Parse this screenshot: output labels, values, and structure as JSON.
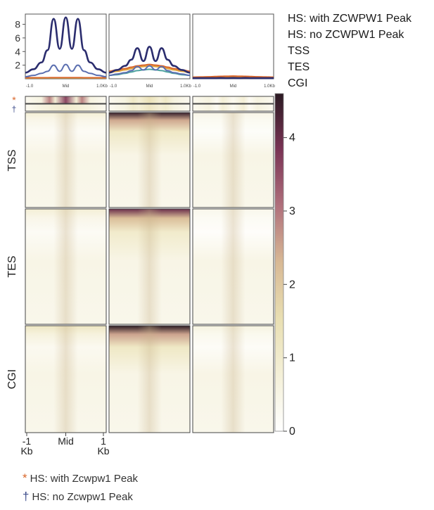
{
  "legend": [
    {
      "label": "HS: with ZCWPW1 Peak",
      "color": "#2b2d6e"
    },
    {
      "label": "HS: no ZCWPW1 Peak",
      "color": "#5b6fb0"
    },
    {
      "label": "TSS",
      "color": "#e0a23a"
    },
    {
      "label": "TES",
      "color": "#4fa3a0"
    },
    {
      "label": "CGI",
      "color": "#d9662a"
    }
  ],
  "footnotes": {
    "star_symbol": "*",
    "star_text": "HS: with Zcwpw1 Peak",
    "star_color": "#d9662a",
    "dagger_symbol": "†",
    "dagger_text": "HS: no Zcwpw1 Peak",
    "dagger_color": "#3a4a8a"
  },
  "row_markers": {
    "star": "*",
    "dagger": "†"
  },
  "row_labels": [
    "TSS",
    "TES",
    "CGI"
  ],
  "bottom_axis": {
    "left": "-1\nKb",
    "mid": "Mid",
    "right": "1\nKb"
  },
  "colorbar": {
    "ticks": [
      0,
      1,
      2,
      3,
      4
    ],
    "min": 0,
    "max": 4.6,
    "stops": [
      "#ffffff",
      "#f4f0d8",
      "#e9dfb2",
      "#d8b995",
      "#b0707c",
      "#7a3355",
      "#2a1a22"
    ]
  },
  "chart_data": {
    "type": "line",
    "profile_xticks": [
      "-1.0",
      "Mid",
      "1.0Kb"
    ],
    "profile_yticks": [
      2,
      4,
      6,
      8
    ],
    "ylim": [
      0,
      9.5
    ],
    "x": [
      -1.0,
      -0.8,
      -0.6,
      -0.45,
      -0.3,
      -0.15,
      0.0,
      0.15,
      0.3,
      0.45,
      0.6,
      0.8,
      1.0
    ],
    "panels": [
      {
        "series": [
          {
            "key": "with_peak",
            "values": [
              0.9,
              1.4,
              2.4,
              4.2,
              8.8,
              4.4,
              9.0,
              4.4,
              8.8,
              4.2,
              2.4,
              1.4,
              0.9
            ]
          },
          {
            "key": "no_peak",
            "values": [
              0.3,
              0.5,
              0.8,
              1.1,
              2.0,
              1.1,
              2.1,
              1.1,
              2.0,
              1.1,
              0.8,
              0.5,
              0.3
            ]
          },
          {
            "key": "TSS",
            "values": [
              0.12,
              0.12,
              0.12,
              0.13,
              0.13,
              0.13,
              0.13,
              0.13,
              0.13,
              0.13,
              0.12,
              0.12,
              0.12
            ]
          },
          {
            "key": "TES",
            "values": [
              0.1,
              0.1,
              0.1,
              0.1,
              0.1,
              0.1,
              0.1,
              0.1,
              0.1,
              0.1,
              0.1,
              0.1,
              0.1
            ]
          },
          {
            "key": "CGI",
            "values": [
              0.15,
              0.15,
              0.16,
              0.16,
              0.17,
              0.17,
              0.17,
              0.17,
              0.17,
              0.16,
              0.16,
              0.15,
              0.15
            ]
          }
        ]
      },
      {
        "series": [
          {
            "key": "with_peak",
            "values": [
              0.9,
              1.3,
              1.9,
              2.8,
              4.5,
              2.6,
              4.7,
              2.6,
              4.5,
              2.8,
              1.9,
              1.3,
              0.9
            ]
          },
          {
            "key": "no_peak",
            "values": [
              0.5,
              0.7,
              0.9,
              1.2,
              1.8,
              1.3,
              1.9,
              1.3,
              1.8,
              1.2,
              0.9,
              0.7,
              0.5
            ]
          },
          {
            "key": "TSS",
            "values": [
              0.9,
              1.1,
              1.3,
              1.5,
              1.7,
              1.8,
              1.9,
              1.8,
              1.7,
              1.5,
              1.3,
              1.1,
              0.9
            ]
          },
          {
            "key": "TES",
            "values": [
              0.5,
              0.6,
              0.8,
              1.0,
              1.2,
              1.3,
              1.4,
              1.3,
              1.2,
              1.0,
              0.8,
              0.6,
              0.5
            ]
          },
          {
            "key": "CGI",
            "values": [
              1.1,
              1.3,
              1.5,
              1.7,
              1.9,
              2.0,
              2.1,
              2.0,
              1.9,
              1.7,
              1.5,
              1.3,
              1.1
            ]
          }
        ]
      },
      {
        "series": [
          {
            "key": "with_peak",
            "values": [
              0.1,
              0.1,
              0.1,
              0.1,
              0.12,
              0.1,
              0.12,
              0.1,
              0.12,
              0.1,
              0.1,
              0.1,
              0.1
            ]
          },
          {
            "key": "no_peak",
            "values": [
              0.1,
              0.1,
              0.1,
              0.1,
              0.1,
              0.1,
              0.1,
              0.1,
              0.1,
              0.1,
              0.1,
              0.1,
              0.1
            ]
          },
          {
            "key": "TSS",
            "values": [
              0.2,
              0.22,
              0.24,
              0.26,
              0.28,
              0.29,
              0.3,
              0.29,
              0.28,
              0.26,
              0.24,
              0.22,
              0.2
            ]
          },
          {
            "key": "TES",
            "values": [
              0.15,
              0.15,
              0.16,
              0.17,
              0.18,
              0.18,
              0.18,
              0.18,
              0.18,
              0.17,
              0.16,
              0.15,
              0.15
            ]
          },
          {
            "key": "CGI",
            "values": [
              0.25,
              0.27,
              0.3,
              0.33,
              0.36,
              0.38,
              0.4,
              0.38,
              0.36,
              0.33,
              0.3,
              0.27,
              0.25
            ]
          }
        ]
      }
    ],
    "heatmap": {
      "columns": [
        {
          "HS_with_peak_max": 3.6,
          "HS_no_peak_max": 0.9,
          "TSS_max": 0.8,
          "TES_max": 0.8,
          "CGI_max": 1.2
        },
        {
          "HS_with_peak_max": 1.4,
          "HS_no_peak_max": 1.2,
          "TSS_max": 4.5,
          "TES_max": 4.0,
          "CGI_max": 4.6
        },
        {
          "HS_with_peak_max": 0.3,
          "HS_no_peak_max": 0.3,
          "TSS_max": 0.5,
          "TES_max": 0.4,
          "CGI_max": 0.6
        }
      ]
    }
  }
}
